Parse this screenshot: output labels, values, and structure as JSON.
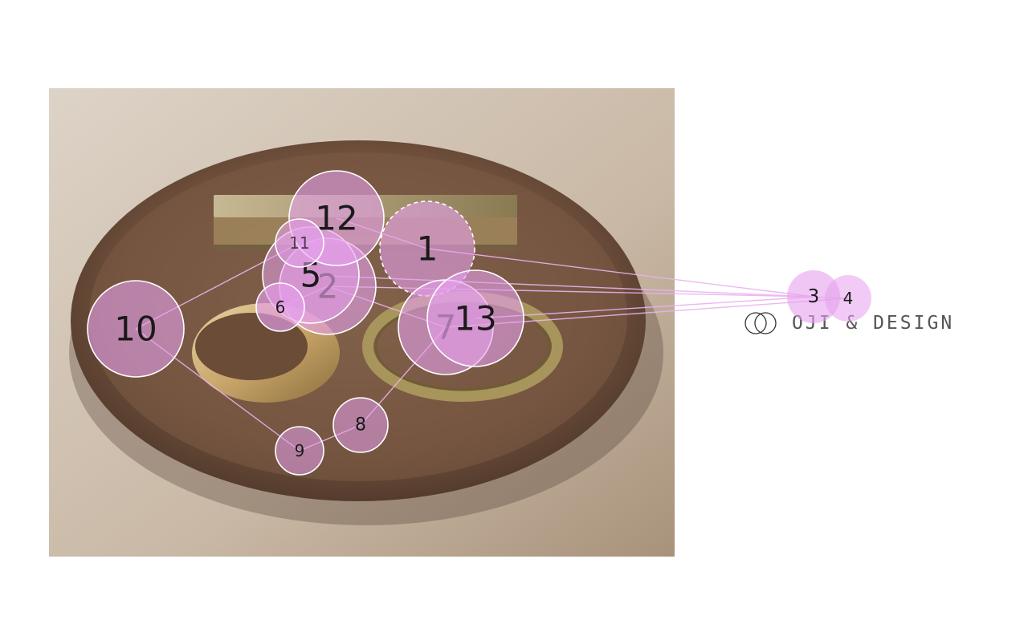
{
  "brand": {
    "name": "OJI & DESIGN",
    "logo_icon": "double-circle-logo-icon"
  },
  "photo": {
    "subject_icon": "wooden-tray-brass-objects-icon"
  },
  "overlay": {
    "fill_color": "#e6a0ec",
    "stroke_color": "#ffffff",
    "markers": [
      {
        "id": "1",
        "label": "1"
      },
      {
        "id": "2",
        "label": "2"
      },
      {
        "id": "3",
        "label": "3"
      },
      {
        "id": "4",
        "label": "4"
      },
      {
        "id": "5",
        "label": "5"
      },
      {
        "id": "6",
        "label": "6"
      },
      {
        "id": "7",
        "label": "7"
      },
      {
        "id": "8",
        "label": "8"
      },
      {
        "id": "9",
        "label": "9"
      },
      {
        "id": "10",
        "label": "10"
      },
      {
        "id": "11",
        "label": "11"
      },
      {
        "id": "12",
        "label": "12"
      },
      {
        "id": "13",
        "label": "13"
      }
    ]
  }
}
